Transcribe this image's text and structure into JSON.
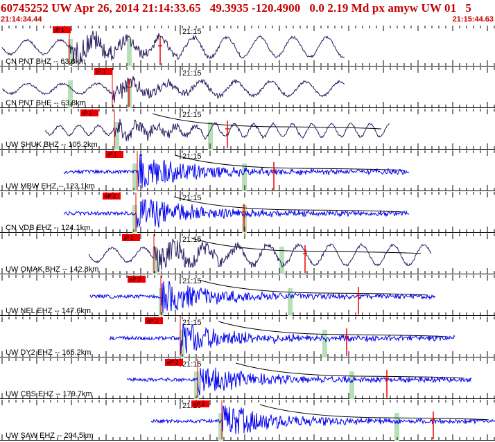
{
  "header": {
    "title": "60745252 UW Apr 26, 2014 21:14:33.65   49.3935 -120.4900   0.0 2.19 Md px amyw UW 01   5",
    "start_time": "21:14:34.44",
    "end_time": "21:15:44.63"
  },
  "colors": {
    "header_text": "#c40000",
    "broadband_trace": "#2a1a5e",
    "short_period_trace": "#0000ee",
    "pick_marker": "#ee0000",
    "window_band": "#b8e0b8",
    "tick": "#000000"
  },
  "minute_label": "21:15",
  "traces": [
    {
      "label": "CN PNT BHZ -- 63.8km",
      "pick": "iP 1",
      "type": "broadband",
      "period": 48,
      "amp_scale": 0.85
    },
    {
      "label": "CN PNT BHE -- 63.8km",
      "pick": "iP 1",
      "type": "broadband",
      "period": 50,
      "amp_scale": 0.6
    },
    {
      "label": "UW SHUK BHZ -- 105.2km",
      "pick": "iP 1",
      "type": "broadband",
      "period": 28,
      "amp_scale": 0.55
    },
    {
      "label": "UW MBW EHZ -- 123.1km",
      "pick": "iP 1",
      "type": "short-period",
      "period": 0,
      "amp_scale": 0.9
    },
    {
      "label": "CN VDB EHZ -- 124.1km",
      "pick": "eP 2",
      "type": "short-period",
      "period": 0,
      "amp_scale": 0.9
    },
    {
      "label": "UW OMAK BHZ -- 142.8km",
      "pick": "iP 1",
      "type": "broadband",
      "period": 45,
      "amp_scale": 0.85
    },
    {
      "label": "UW NEL EHZ -- 147.6km",
      "pick": "eP 2",
      "type": "short-period",
      "period": 0,
      "amp_scale": 0.85
    },
    {
      "label": "UW DY2 EHZ -- 165.2km",
      "pick": "eP 2",
      "type": "short-period",
      "period": 0,
      "amp_scale": 0.8
    },
    {
      "label": "UW CBS EHZ -- 179.7km",
      "pick": "eP 2",
      "type": "short-period",
      "period": 0,
      "amp_scale": 0.7
    },
    {
      "label": "UW SAW EHZ -- 204.5km",
      "pick": "eP 2",
      "type": "short-period",
      "period": 0,
      "amp_scale": 0.85
    }
  ]
}
